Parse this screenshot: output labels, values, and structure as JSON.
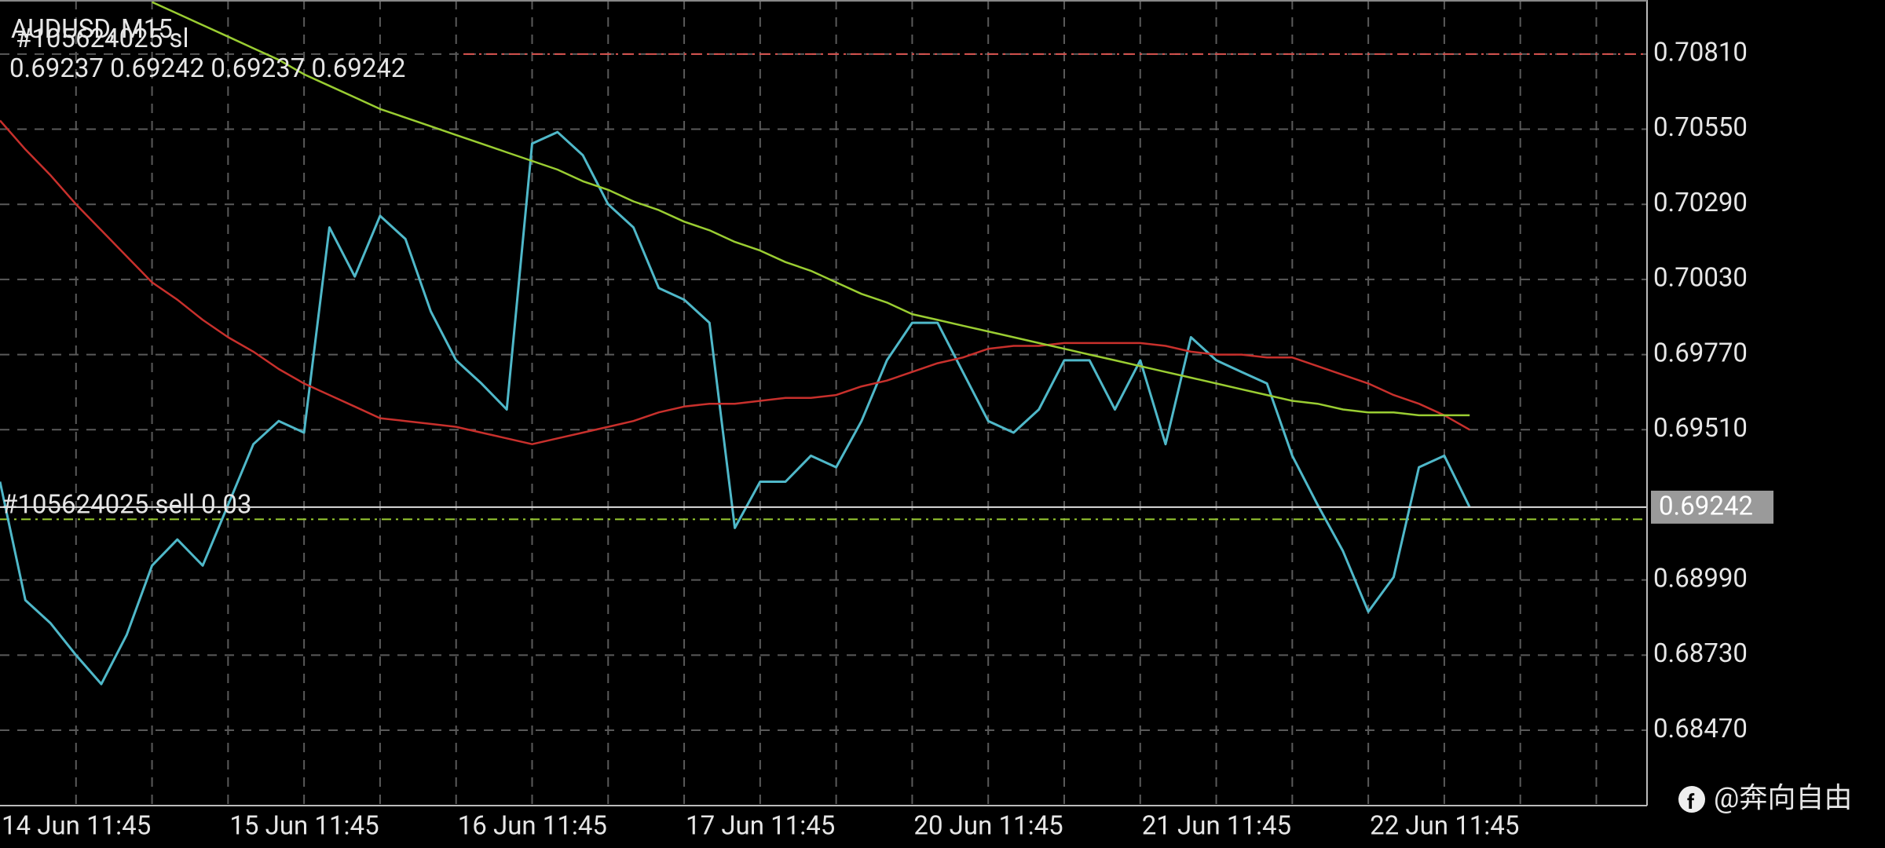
{
  "chart_data": {
    "type": "line",
    "title": "AUDUSD, M15",
    "ohlc_text": "0.69237 0.69242 0.69237 0.69242",
    "categories": [
      "14 Jun 11:45",
      null,
      null,
      null,
      null,
      null,
      null,
      null,
      null,
      "15 Jun 11:45",
      null,
      null,
      null,
      null,
      null,
      null,
      null,
      null,
      "16 Jun 11:45",
      null,
      null,
      null,
      null,
      null,
      null,
      null,
      null,
      "17 Jun 11:45",
      null,
      null,
      null,
      null,
      null,
      null,
      null,
      null,
      "20 Jun 11:45",
      null,
      null,
      null,
      null,
      null,
      null,
      null,
      null,
      "21 Jun 11:45",
      null,
      null,
      null,
      null,
      null,
      null,
      null,
      null,
      "22 Jun 11:45",
      null,
      null,
      null,
      null,
      null,
      null,
      null,
      null,
      null,
      null
    ],
    "series": [
      {
        "color": "#4fb8c9",
        "values": [
          0.6933,
          0.6892,
          0.6884,
          0.6873,
          0.6863,
          0.688,
          0.6904,
          0.6913,
          0.6904,
          0.6925,
          0.6946,
          0.6954,
          0.695,
          0.7021,
          0.7004,
          0.7025,
          0.7017,
          0.6992,
          0.6975,
          0.6967,
          0.6958,
          0.705,
          0.7054,
          0.7046,
          0.7029,
          0.7021,
          0.7,
          0.6996,
          0.6988,
          0.6917,
          0.6933,
          0.6933,
          0.6942,
          0.6938,
          0.6954,
          0.6975,
          0.6988,
          0.6988,
          0.6971,
          0.6954,
          0.695,
          0.6958,
          0.6975,
          0.6975,
          0.6958,
          0.6975,
          0.6946,
          0.6983,
          0.6975,
          0.6971,
          0.6967,
          0.6942,
          0.6925,
          0.6909,
          0.6888,
          0.69,
          0.6938,
          0.6942,
          0.69242,
          null,
          null,
          null,
          null,
          null,
          null
        ]
      },
      {
        "color": "#c8302c",
        "values": [
          0.7058,
          0.7048,
          0.7039,
          0.7029,
          0.702,
          0.7011,
          0.7002,
          0.6996,
          0.6989,
          0.6983,
          0.6978,
          0.6972,
          0.6967,
          0.6963,
          0.6959,
          0.6955,
          0.6954,
          0.6953,
          0.6952,
          0.695,
          0.6948,
          0.6946,
          0.6948,
          0.695,
          0.6952,
          0.6954,
          0.6957,
          0.6959,
          0.696,
          0.696,
          0.6961,
          0.6962,
          0.6962,
          0.6963,
          0.6966,
          0.6968,
          0.6971,
          0.6974,
          0.6976,
          0.6979,
          0.698,
          0.698,
          0.6981,
          0.6981,
          0.6981,
          0.6981,
          0.698,
          0.6978,
          0.6977,
          0.6977,
          0.6976,
          0.6976,
          0.6973,
          0.697,
          0.6967,
          0.6963,
          0.696,
          0.6956,
          0.6951,
          null,
          null,
          null,
          null,
          null,
          null
        ]
      },
      {
        "color": "#9acd32",
        "values": [
          null,
          null,
          null,
          null,
          null,
          null,
          0.7099,
          0.7095,
          0.7091,
          0.7087,
          0.7083,
          0.7079,
          0.7074,
          0.707,
          0.7066,
          0.7062,
          0.7059,
          0.7056,
          0.7053,
          0.705,
          0.7047,
          0.7044,
          0.7041,
          0.7037,
          0.7034,
          0.703,
          0.7027,
          0.7023,
          0.702,
          0.7016,
          0.7013,
          0.7009,
          0.7006,
          0.7002,
          0.6998,
          0.6995,
          0.6991,
          0.6989,
          0.6987,
          0.6985,
          0.6983,
          0.6981,
          0.6979,
          0.6977,
          0.6975,
          0.6973,
          0.6971,
          0.6969,
          0.6967,
          0.6965,
          0.6963,
          0.6961,
          0.696,
          0.6958,
          0.6957,
          0.6957,
          0.6956,
          0.6956,
          0.6956,
          null,
          null,
          null,
          null,
          null,
          null
        ]
      }
    ],
    "order_lines": [
      {
        "label": "#105624025 sl",
        "value": 0.7081,
        "color": "#d9534f"
      },
      {
        "label": "#105624025 sell  0.03",
        "value": 0.692,
        "color": "#9acd32"
      }
    ],
    "current_price": 0.69242,
    "ylim": [
      0.68212,
      0.70997
    ],
    "yticks": [
      {
        "value": 0.7081,
        "label": "0.70810"
      },
      {
        "value": 0.7055,
        "label": "0.70550"
      },
      {
        "value": 0.7029,
        "label": "0.70290"
      },
      {
        "value": 0.7003,
        "label": "0.70030"
      },
      {
        "value": 0.6977,
        "label": "0.69770"
      },
      {
        "value": 0.6951,
        "label": "0.69510"
      },
      {
        "value": 0.6899,
        "label": "0.68990"
      },
      {
        "value": 0.6873,
        "label": "0.68730"
      },
      {
        "value": 0.6847,
        "label": "0.68470"
      }
    ],
    "grid": true,
    "watermark": "@奔向自由"
  }
}
